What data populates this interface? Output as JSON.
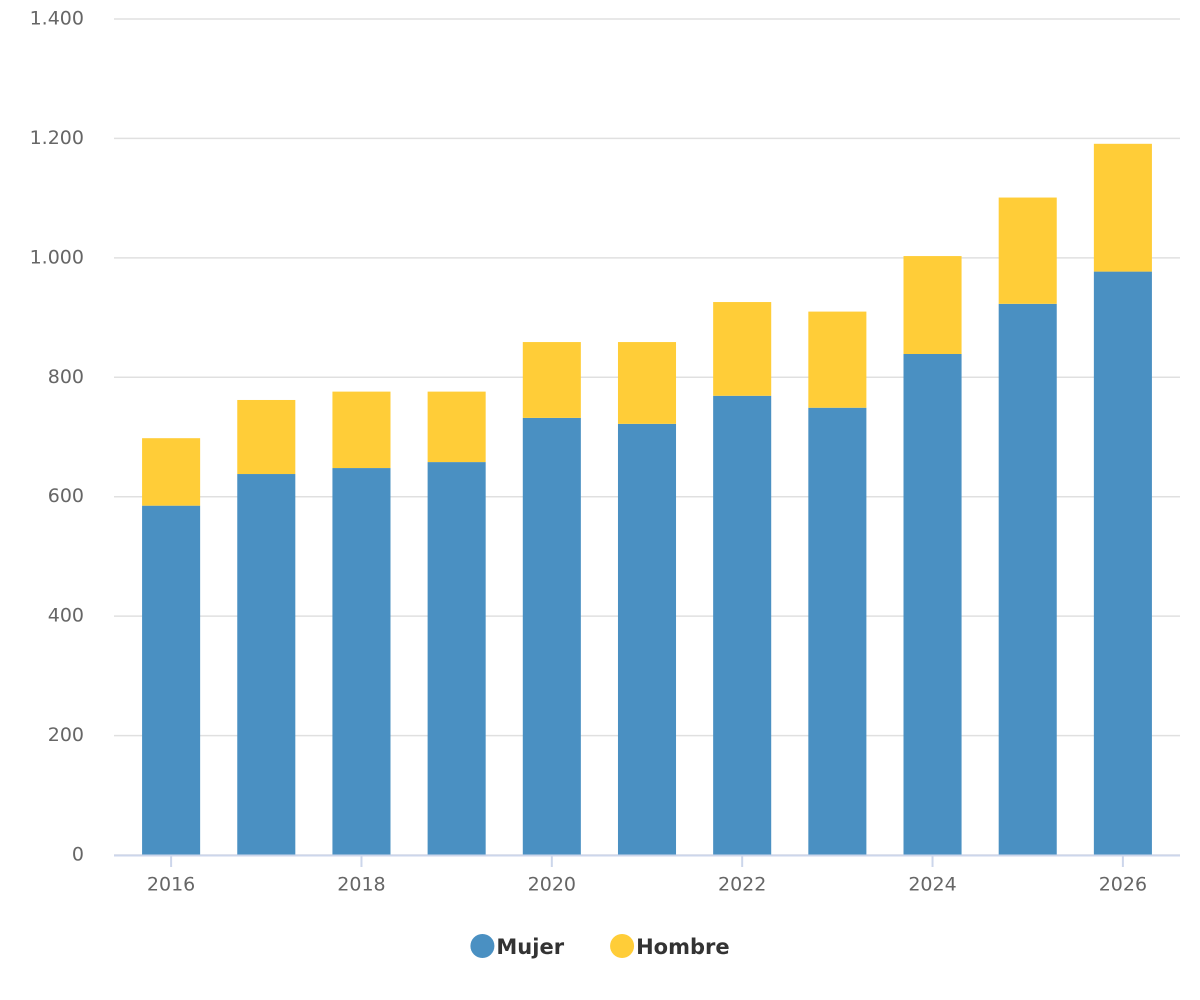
{
  "chart_data": {
    "type": "stacked_bar",
    "x": [
      2016,
      2017,
      2018,
      2019,
      2020,
      2021,
      2022,
      2023,
      2024,
      2025,
      2026
    ],
    "series": [
      {
        "name": "Mujer",
        "color": "#4a90c2",
        "values": [
          585,
          638,
          648,
          658,
          732,
          722,
          769,
          749,
          839,
          923,
          977
        ]
      },
      {
        "name": "Hombre",
        "color": "#ffcd38",
        "values": [
          113,
          124,
          128,
          118,
          127,
          137,
          157,
          161,
          164,
          178,
          214
        ]
      }
    ],
    "xlim": [
      2015.4,
      2026.6
    ],
    "xticks": [
      2016,
      2018,
      2020,
      2022,
      2024,
      2026
    ],
    "ylim": [
      0,
      1400
    ],
    "yticks": [
      0,
      200,
      400,
      600,
      800,
      {
        "value": 1000,
        "label": "1.000"
      },
      {
        "value": 1200,
        "label": "1.200"
      },
      {
        "value": 1400,
        "label": "1.400"
      }
    ],
    "grid": true,
    "legend": "bottom"
  }
}
